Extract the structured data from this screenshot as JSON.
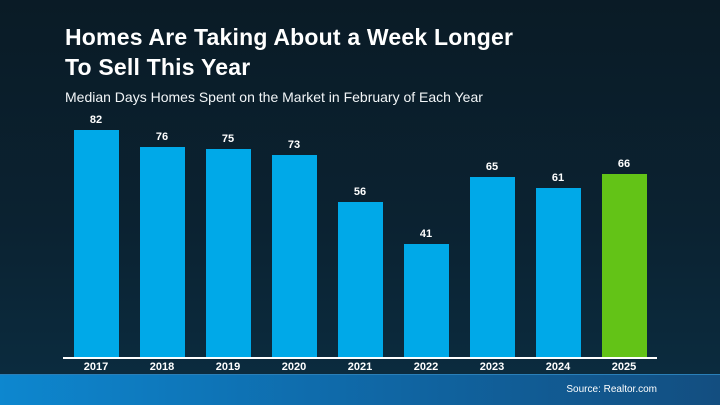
{
  "slide": {
    "title_line1": "Homes Are Taking About a Week Longer",
    "title_line2": "To Sell This Year",
    "subtitle": "Median Days Homes Spent on the Market in February of Each Year"
  },
  "footer": {
    "source": "Source: Realtor.com"
  },
  "colors": {
    "bar": "#00a9e8",
    "bar_highlight": "#63c317",
    "axis_line": "#ffffff",
    "background_top": "#0a1b26",
    "background_bottom": "#0b2d41",
    "footer_left": "#0d87cf",
    "footer_right": "#134e80"
  },
  "chart_data": {
    "type": "bar",
    "title": "Homes Are Taking About a Week Longer To Sell This Year",
    "subtitle": "Median Days Homes Spent on the Market in February of Each Year",
    "categories": [
      "2017",
      "2018",
      "2019",
      "2020",
      "2021",
      "2022",
      "2023",
      "2024",
      "2025"
    ],
    "values": [
      82,
      76,
      75,
      73,
      56,
      41,
      65,
      61,
      66
    ],
    "highlight_index": 8,
    "bar_color": "#00a9e8",
    "highlight_color": "#63c317",
    "value_labels": true,
    "xlabel": "",
    "ylabel": "",
    "ylim": [
      0,
      88
    ],
    "grid": false,
    "legend": false
  }
}
